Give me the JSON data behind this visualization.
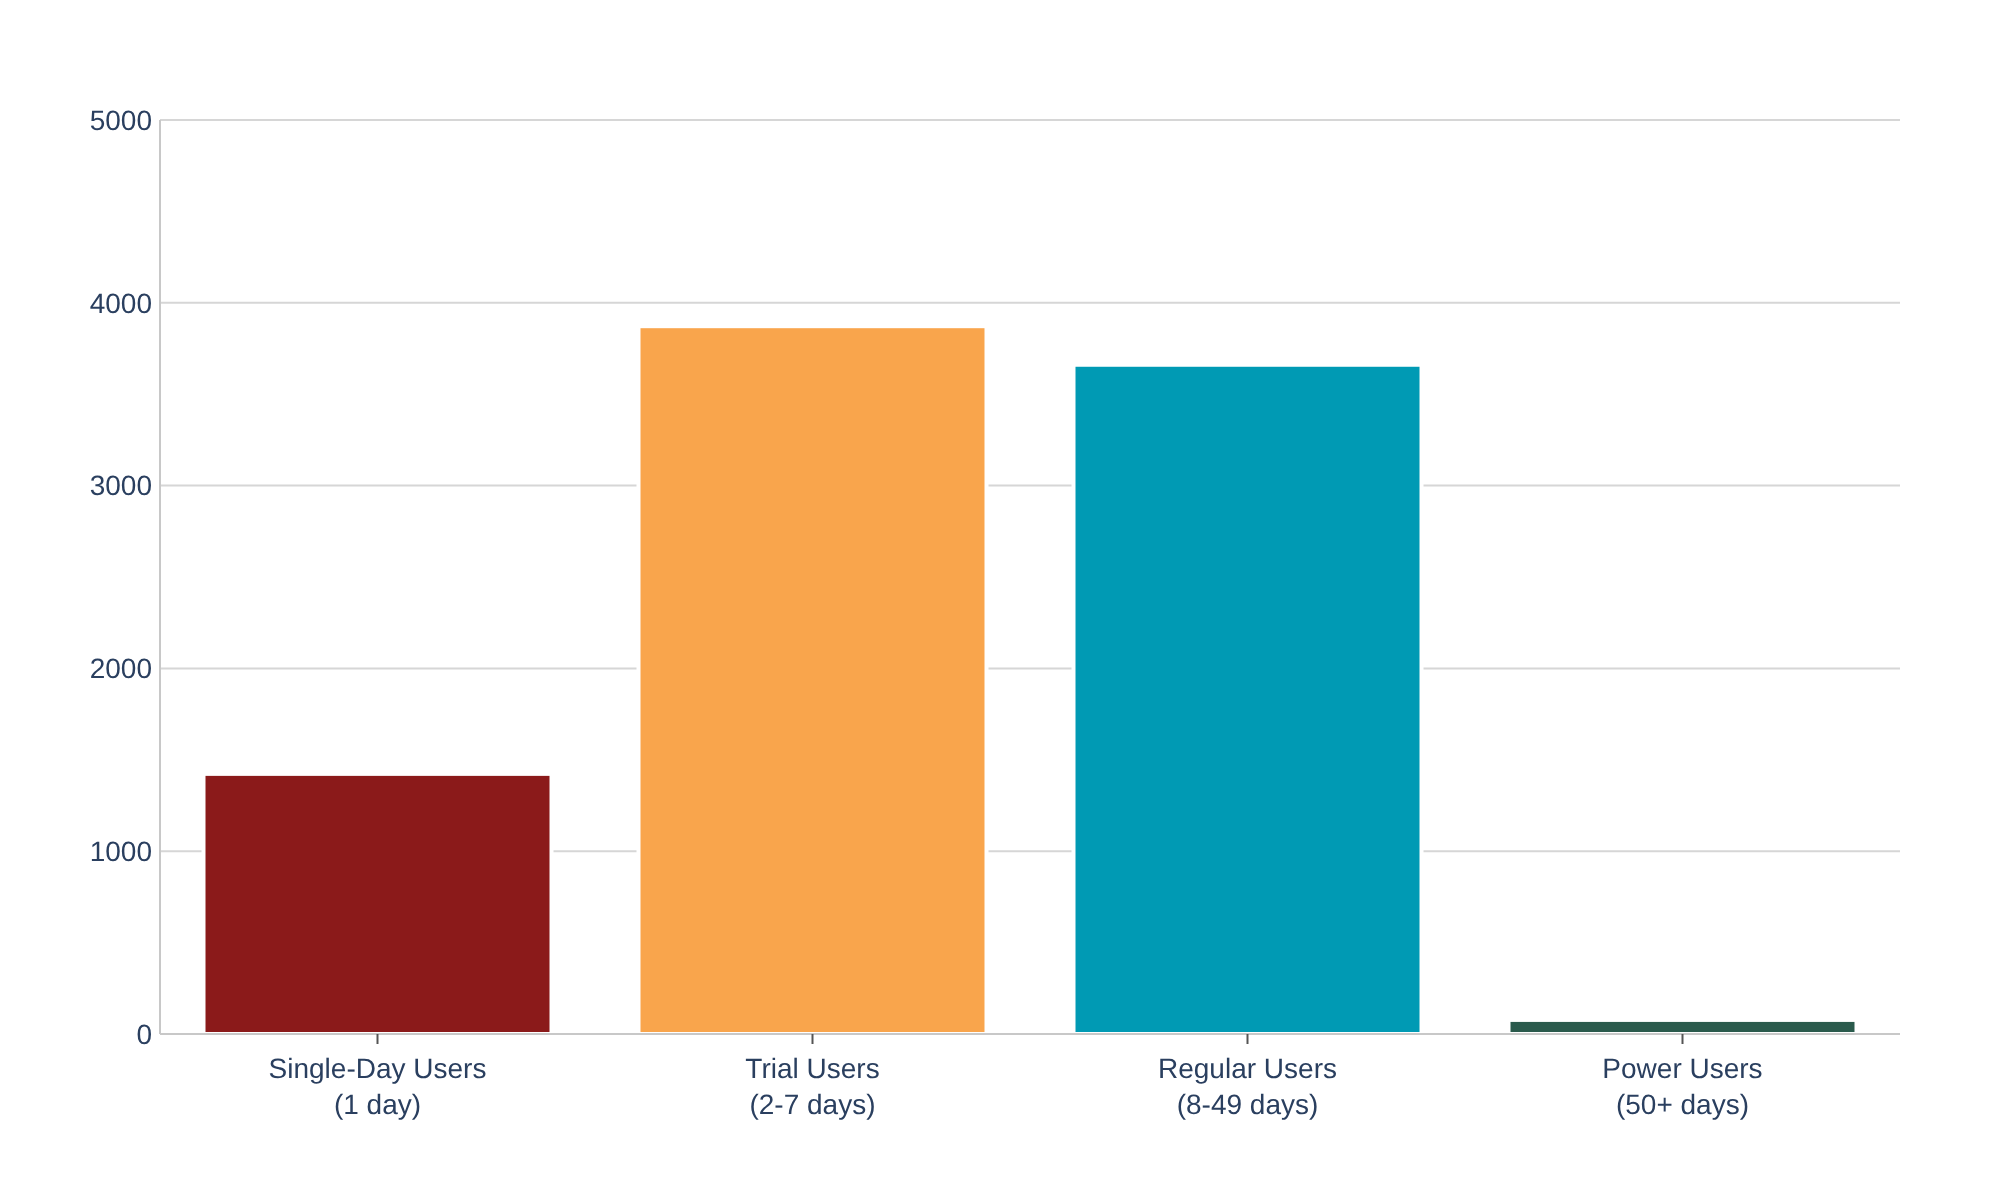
{
  "chart_data": {
    "type": "bar",
    "categories": [
      "Single-Day Users\n(1 day)",
      "Trial Users\n(2-7 days)",
      "Regular Users\n(8-49 days)",
      "Power Users\n(50+ days)"
    ],
    "values": [
      1423,
      3872,
      3661,
      77
    ],
    "colors": [
      "#8b1a1a",
      "#f9a54c",
      "#009ab4",
      "#2a5a4c"
    ],
    "ylim": [
      0,
      5000
    ],
    "yticks": [
      0,
      1000,
      2000,
      3000,
      4000,
      5000
    ],
    "grid": "y"
  }
}
